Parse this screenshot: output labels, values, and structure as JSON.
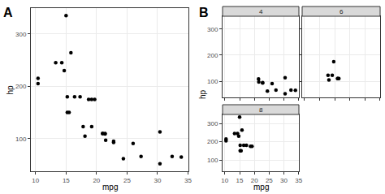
{
  "chart_data": [
    {
      "type": "scatter",
      "title": "A",
      "x_label": "mpg",
      "y_label": "hp",
      "color": "#000000",
      "x": [
        21,
        21,
        22.8,
        21.4,
        18.7,
        18.1,
        14.3,
        24.4,
        22.8,
        19.2,
        17.8,
        16.4,
        17.3,
        15.2,
        10.4,
        10.4,
        14.7,
        32.4,
        30.4,
        33.9,
        21.5,
        15.5,
        15.2,
        13.3,
        19.2,
        27.3,
        26,
        30.4,
        15.8,
        19.7,
        15,
        21.4
      ],
      "values": [
        110,
        110,
        93,
        110,
        175,
        105,
        245,
        62,
        95,
        123,
        123,
        180,
        180,
        180,
        205,
        215,
        230,
        66,
        52,
        65,
        97,
        150,
        150,
        245,
        175,
        66,
        91,
        113,
        264,
        175,
        335,
        109
      ],
      "xlim": [
        9.225,
        35.075
      ],
      "ylim": [
        37.85,
        349.15
      ],
      "xticks": [
        10,
        15,
        20,
        25,
        30,
        35
      ],
      "yticks": [
        100,
        200,
        300
      ],
      "grid": true
    },
    {
      "type": "scatter",
      "title": "B",
      "x_label": "mpg",
      "y_label": "hp",
      "series": [
        {
          "name": "4",
          "color": "#000000",
          "x": [
            22.8,
            24.4,
            22.8,
            32.4,
            30.4,
            33.9,
            21.5,
            27.3,
            26,
            30.4,
            21.4
          ],
          "values": [
            93,
            62,
            95,
            66,
            52,
            65,
            97,
            66,
            91,
            113,
            109
          ]
        },
        {
          "name": "6",
          "color": "#000000",
          "x": [
            21,
            21,
            21.4,
            18.1,
            19.2,
            17.8,
            19.7
          ],
          "values": [
            110,
            110,
            110,
            105,
            123,
            123,
            175
          ]
        },
        {
          "name": "8",
          "color": "#000000",
          "x": [
            18.7,
            14.3,
            16.4,
            17.3,
            15.2,
            10.4,
            10.4,
            14.7,
            15.5,
            15.2,
            13.3,
            19.2,
            15.8,
            15
          ],
          "values": [
            175,
            245,
            180,
            180,
            180,
            205,
            215,
            230,
            150,
            150,
            245,
            175,
            264,
            335
          ]
        }
      ],
      "xlim": [
        9.225,
        35.075
      ],
      "ylim": [
        37.85,
        349.15
      ],
      "xticks": [
        10,
        15,
        20,
        25,
        30,
        35
      ],
      "yticks": [
        100,
        200,
        300
      ],
      "grid": true
    }
  ]
}
